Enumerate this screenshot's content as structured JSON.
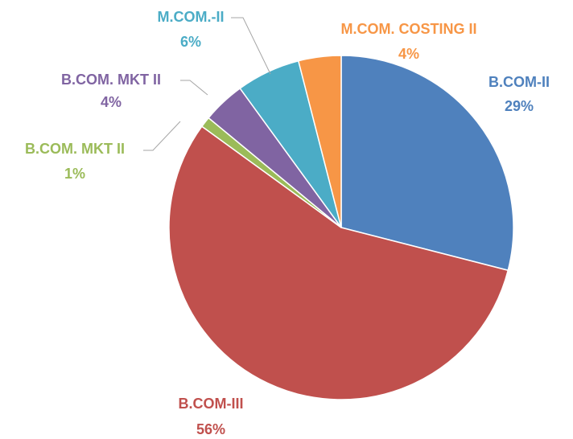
{
  "chart_data": {
    "type": "pie",
    "categories": [
      "B.COM-II",
      "B.COM-III",
      "B.COM. MKT II",
      "B.COM. MKT II",
      "M.COM.-II",
      "M.COM. COSTING II"
    ],
    "values": [
      29,
      56,
      1,
      4,
      6,
      4
    ],
    "value_labels": [
      "29%",
      "56%",
      "1%",
      "4%",
      "6%",
      "4%"
    ],
    "colors": [
      "#4f81bd",
      "#c0504d",
      "#9bbb59",
      "#8064a2",
      "#4bacc6",
      "#f79646"
    ]
  }
}
